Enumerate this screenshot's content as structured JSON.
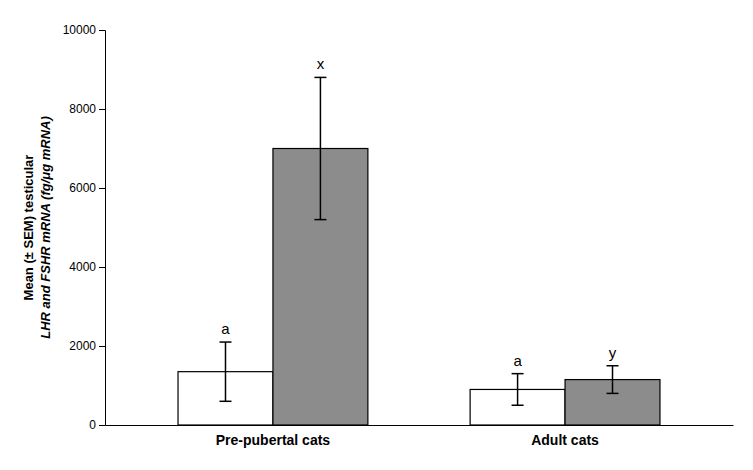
{
  "chart_data": {
    "type": "bar",
    "categories": [
      "Pre-pubertal cats",
      "Adult cats"
    ],
    "series": [
      {
        "color": "#ffffff",
        "values": [
          1350,
          900
        ],
        "errors": [
          750,
          400
        ],
        "annotations": [
          "a",
          "a"
        ]
      },
      {
        "color": "#8c8c8c",
        "values": [
          7000,
          1150
        ],
        "errors": [
          1800,
          350
        ],
        "annotations": [
          "x",
          "y"
        ]
      }
    ],
    "y_label": [
      "Mean (± SEM) testicular",
      "LHR and FSHR mRNA (fg/μg mRNA)"
    ],
    "ylim": [
      0,
      10000
    ],
    "yticks": [
      0,
      2000,
      4000,
      6000,
      8000,
      10000
    ],
    "grid": false
  }
}
